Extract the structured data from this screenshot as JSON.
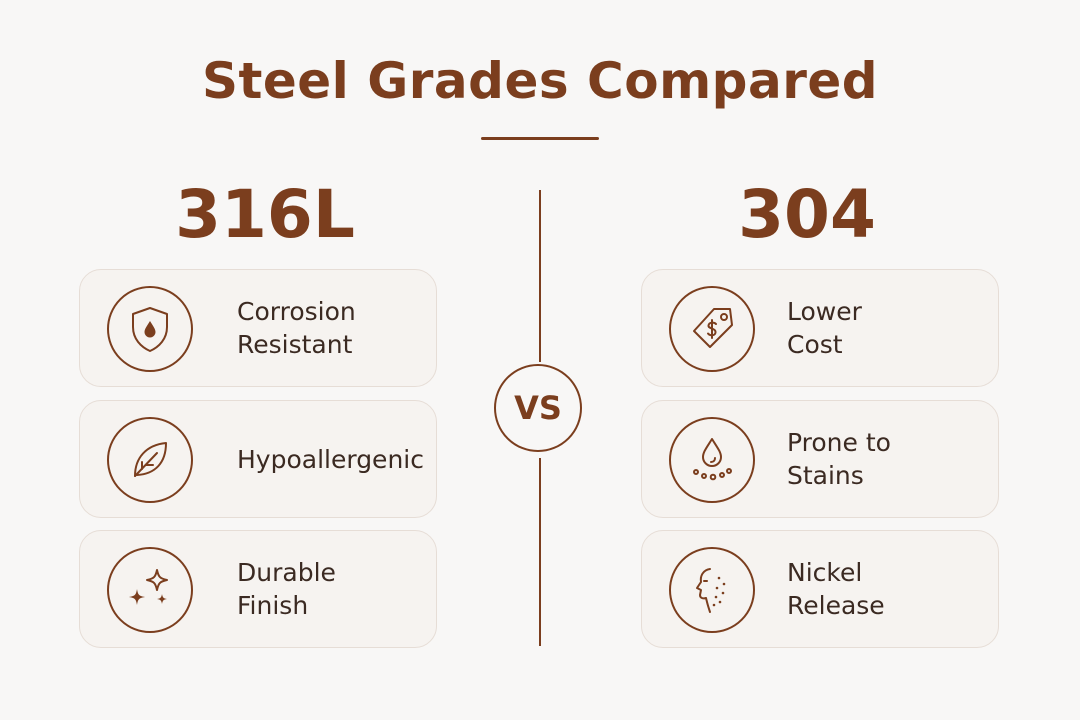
{
  "title": "Steel Grades Compared",
  "vs_label": "VS",
  "left": {
    "grade": "316L",
    "features": [
      {
        "label": "Corrosion\nResistant",
        "icon": "shield-drop-icon"
      },
      {
        "label": "Hypoallergenic",
        "icon": "leaf-icon"
      },
      {
        "label": "Durable\nFinish",
        "icon": "sparkle-icon"
      }
    ]
  },
  "right": {
    "grade": "304",
    "features": [
      {
        "label": "Lower\nCost",
        "icon": "price-tag-icon"
      },
      {
        "label": "Prone to\nStains",
        "icon": "drop-stain-icon"
      },
      {
        "label": "Nickel\nRelease",
        "icon": "face-irritation-icon"
      }
    ]
  },
  "colors": {
    "accent": "#7b3e1e",
    "card_bg": "#f6f3f0",
    "card_border": "#e6ddd6",
    "text": "#3b2a22",
    "background": "#f8f7f6"
  }
}
